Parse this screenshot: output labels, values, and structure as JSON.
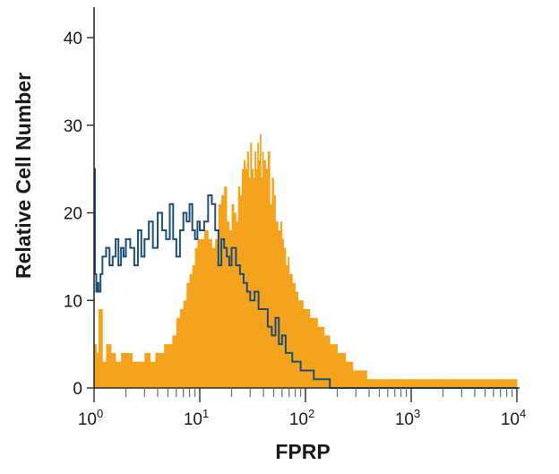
{
  "chart_data": {
    "type": "area",
    "title": "",
    "xlabel": "FPRP",
    "ylabel": "Relative Cell Number",
    "xscale": "log",
    "xlim": [
      1,
      10000
    ],
    "ylim": [
      0,
      45
    ],
    "y_ticks": [
      0,
      10,
      20,
      30,
      40
    ],
    "x_ticks": [
      {
        "base": "10",
        "exp": "0",
        "value": 1
      },
      {
        "base": "10",
        "exp": "1",
        "value": 10
      },
      {
        "base": "10",
        "exp": "2",
        "value": 100
      },
      {
        "base": "10",
        "exp": "3",
        "value": 1000
      },
      {
        "base": "10",
        "exp": "4",
        "value": 10000
      }
    ],
    "grid": false,
    "legend": "none",
    "series": [
      {
        "style": "filled",
        "color": "#f5a21c",
        "x": [
          1,
          1.05,
          1.1,
          1.2,
          1.3,
          1.45,
          1.6,
          1.8,
          2,
          2.3,
          2.6,
          3,
          3.4,
          3.8,
          4.2,
          4.6,
          5,
          5.5,
          6,
          6.5,
          7,
          7.5,
          8,
          8.5,
          9,
          9.5,
          10,
          11,
          12,
          13,
          14,
          15,
          16,
          17,
          18,
          19,
          20,
          21,
          22,
          23,
          24,
          25,
          26,
          27,
          28,
          29,
          30,
          31,
          32,
          33,
          34,
          35,
          36,
          37,
          38,
          39,
          40,
          42,
          44,
          46,
          48,
          50,
          52,
          55,
          58,
          60,
          62,
          65,
          68,
          70,
          75,
          80,
          85,
          90,
          95,
          100,
          110,
          120,
          130,
          140,
          150,
          160,
          170,
          180,
          190,
          200,
          220,
          240,
          260,
          280,
          300,
          320,
          350,
          380,
          420,
          460,
          500,
          600,
          700,
          800,
          1000,
          1200,
          1500,
          1800,
          2000,
          2500,
          3000,
          3500,
          4000,
          5000,
          6000,
          7000,
          8000,
          9000,
          10000
        ],
        "values": [
          5,
          4,
          9,
          3,
          5,
          4,
          3,
          4,
          4,
          3,
          3,
          4,
          3,
          4,
          4,
          5,
          5,
          6,
          8,
          9,
          10,
          12,
          13,
          14,
          16,
          17,
          17,
          18,
          17,
          16,
          17,
          21,
          22,
          23,
          19,
          18,
          21,
          20,
          19,
          23,
          22,
          25,
          26,
          25,
          27,
          24,
          28,
          25,
          24,
          27,
          25,
          28,
          26,
          29,
          24,
          27,
          26,
          25,
          27,
          21,
          24,
          22,
          19,
          18,
          19,
          17,
          16,
          14,
          15,
          13,
          12,
          11,
          10,
          10,
          9,
          9,
          8,
          8,
          7,
          7,
          6,
          6,
          5,
          5,
          5,
          4,
          4,
          3,
          3,
          2,
          2,
          2,
          2,
          1,
          1,
          1,
          1,
          1,
          1,
          1,
          1,
          1,
          1,
          1,
          1,
          1,
          1,
          1,
          1,
          1,
          1,
          1,
          1,
          1,
          1
        ]
      },
      {
        "style": "line",
        "color": "#1d4f7a",
        "x": [
          1,
          1.02,
          1.05,
          1.08,
          1.1,
          1.15,
          1.2,
          1.3,
          1.4,
          1.5,
          1.6,
          1.7,
          1.8,
          1.9,
          2,
          2.2,
          2.4,
          2.6,
          2.8,
          3,
          3.3,
          3.6,
          4,
          4.4,
          4.8,
          5.2,
          5.6,
          6,
          6.5,
          7,
          7.5,
          8,
          8.5,
          9,
          9.5,
          10,
          11,
          12,
          13,
          14,
          15,
          16,
          17,
          18,
          19,
          20,
          22,
          24,
          26,
          28,
          30,
          33,
          36,
          40,
          44,
          48,
          52,
          56,
          60,
          65,
          70,
          75,
          80,
          90,
          100,
          110,
          120,
          130,
          140,
          150,
          170,
          190,
          210,
          240,
          270,
          300,
          400,
          500,
          700,
          900,
          1200,
          1500,
          2000,
          3000,
          4000,
          5000,
          6000,
          7000,
          8000,
          10000
        ],
        "values": [
          25,
          13,
          11,
          12,
          11,
          13,
          15,
          16,
          14,
          15,
          17,
          14,
          16,
          15,
          17,
          16,
          14,
          18,
          15,
          17,
          19,
          16,
          20,
          18,
          17,
          21,
          17,
          15,
          18,
          20,
          19,
          21,
          18,
          17,
          19,
          18,
          19,
          22,
          21,
          18,
          14,
          17,
          16,
          15,
          14,
          16,
          14,
          13,
          12,
          11,
          10,
          11,
          9,
          9,
          7,
          6,
          8,
          5,
          6,
          4,
          4,
          3,
          3,
          2,
          2,
          2,
          1,
          1,
          1,
          1,
          0,
          0,
          0,
          0,
          0,
          0,
          0,
          0,
          0,
          0,
          0,
          0,
          0,
          0,
          0,
          0,
          0,
          0,
          0,
          0
        ]
      }
    ]
  }
}
